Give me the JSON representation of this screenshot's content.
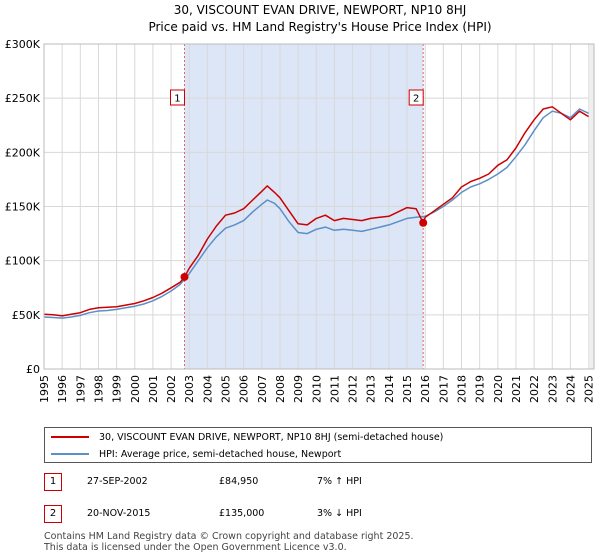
{
  "chart_data": {
    "type": "line",
    "title": "30, VISCOUNT EVAN DRIVE, NEWPORT, NP10 8HJ",
    "subtitle": "Price paid vs. HM Land Registry's House Price Index (HPI)",
    "xlabel": "",
    "ylabel": "",
    "xlim": [
      1995.0,
      2025.3
    ],
    "ylim": [
      0,
      300000
    ],
    "x_ticks": [
      "1995",
      "1996",
      "1997",
      "1998",
      "1999",
      "2000",
      "2001",
      "2002",
      "2003",
      "2004",
      "2005",
      "2006",
      "2007",
      "2008",
      "2009",
      "2010",
      "2011",
      "2012",
      "2013",
      "2014",
      "2015",
      "2016",
      "2017",
      "2018",
      "2019",
      "2020",
      "2021",
      "2022",
      "2023",
      "2024",
      "2025"
    ],
    "y_ticks": [
      {
        "value": 0,
        "label": "£0"
      },
      {
        "value": 50000,
        "label": "£50K"
      },
      {
        "value": 100000,
        "label": "£100K"
      },
      {
        "value": 150000,
        "label": "£150K"
      },
      {
        "value": 200000,
        "label": "£200K"
      },
      {
        "value": 250000,
        "label": "£250K"
      },
      {
        "value": 300000,
        "label": "£300K"
      }
    ],
    "grid": true,
    "shaded_range": [
      2002.74,
      2015.89
    ],
    "shade_color": "#dde6f7",
    "series": [
      {
        "name": "30, VISCOUNT EVAN DRIVE, NEWPORT, NP10 8HJ (semi-detached house)",
        "color": "#cc0000",
        "x": [
          1995.0,
          1995.5,
          1996.0,
          1996.5,
          1997.0,
          1997.5,
          1998.0,
          1998.5,
          1999.0,
          1999.5,
          2000.0,
          2000.5,
          2001.0,
          2001.5,
          2002.0,
          2002.5,
          2002.74,
          2003.0,
          2003.5,
          2004.0,
          2004.5,
          2005.0,
          2005.5,
          2006.0,
          2006.5,
          2007.0,
          2007.3,
          2007.7,
          2008.0,
          2008.5,
          2009.0,
          2009.5,
          2010.0,
          2010.5,
          2011.0,
          2011.5,
          2012.0,
          2012.5,
          2013.0,
          2013.5,
          2014.0,
          2014.5,
          2015.0,
          2015.5,
          2015.89,
          2016.0,
          2016.5,
          2017.0,
          2017.5,
          2018.0,
          2018.5,
          2019.0,
          2019.5,
          2020.0,
          2020.5,
          2021.0,
          2021.5,
          2022.0,
          2022.5,
          2023.0,
          2023.5,
          2024.0,
          2024.5,
          2025.0
        ],
        "values": [
          50500,
          50000,
          49000,
          50500,
          52000,
          55000,
          56500,
          57000,
          57500,
          59000,
          60500,
          63000,
          66000,
          70000,
          75000,
          80000,
          84950,
          93000,
          105000,
          120000,
          132000,
          142000,
          144000,
          148000,
          156000,
          164000,
          169000,
          163000,
          158000,
          146000,
          134000,
          133000,
          139000,
          142000,
          137000,
          139000,
          138000,
          137000,
          139000,
          140000,
          141000,
          145000,
          149000,
          148000,
          135000,
          140000,
          146000,
          152000,
          158000,
          168000,
          173000,
          176000,
          180000,
          188000,
          193000,
          204000,
          218000,
          230000,
          240000,
          242000,
          236000,
          230000,
          238000,
          233000
        ]
      },
      {
        "name": "HPI: Average price, semi-detached house, Newport",
        "color": "#5b8fc7",
        "x": [
          1995.0,
          1995.5,
          1996.0,
          1996.5,
          1997.0,
          1997.5,
          1998.0,
          1998.5,
          1999.0,
          1999.5,
          2000.0,
          2000.5,
          2001.0,
          2001.5,
          2002.0,
          2002.5,
          2003.0,
          2003.5,
          2004.0,
          2004.5,
          2005.0,
          2005.5,
          2006.0,
          2006.5,
          2007.0,
          2007.3,
          2007.7,
          2008.0,
          2008.5,
          2009.0,
          2009.5,
          2010.0,
          2010.5,
          2011.0,
          2011.5,
          2012.0,
          2012.5,
          2013.0,
          2013.5,
          2014.0,
          2014.5,
          2015.0,
          2015.5,
          2016.0,
          2016.5,
          2017.0,
          2017.5,
          2018.0,
          2018.5,
          2019.0,
          2019.5,
          2020.0,
          2020.5,
          2021.0,
          2021.5,
          2022.0,
          2022.5,
          2023.0,
          2023.5,
          2024.0,
          2024.5,
          2025.0
        ],
        "values": [
          48000,
          47500,
          47000,
          48000,
          49500,
          52000,
          53500,
          54000,
          55000,
          56500,
          58000,
          60000,
          63000,
          67000,
          72000,
          78000,
          88000,
          100000,
          112000,
          122000,
          130000,
          133000,
          137000,
          145000,
          152000,
          156000,
          153000,
          148000,
          136000,
          126000,
          125000,
          129000,
          131000,
          128000,
          129000,
          128000,
          127000,
          129000,
          131000,
          133000,
          136000,
          139000,
          140000,
          141000,
          145000,
          150000,
          156000,
          163000,
          168000,
          171000,
          175000,
          180000,
          186000,
          196000,
          207000,
          220000,
          232000,
          238000,
          236000,
          232000,
          240000,
          236000
        ]
      }
    ],
    "markers": [
      {
        "id": "1",
        "x": 2002.74,
        "y": 84950
      },
      {
        "id": "2",
        "x": 2015.89,
        "y": 135000
      }
    ]
  },
  "legend": {
    "items": [
      {
        "label": "30, VISCOUNT EVAN DRIVE, NEWPORT, NP10 8HJ (semi-detached house)",
        "color": "#cc0000"
      },
      {
        "label": "HPI: Average price, semi-detached house, Newport",
        "color": "#5b8fc7"
      }
    ]
  },
  "sales": [
    {
      "id": "1",
      "date": "27-SEP-2002",
      "price": "£84,950",
      "hpi": "7% ↑ HPI"
    },
    {
      "id": "2",
      "date": "20-NOV-2015",
      "price": "£135,000",
      "hpi": "3% ↓ HPI"
    }
  ],
  "footer": {
    "line1": "Contains HM Land Registry data © Crown copyright and database right 2025.",
    "line2": "This data is licensed under the Open Government Licence v3.0."
  }
}
